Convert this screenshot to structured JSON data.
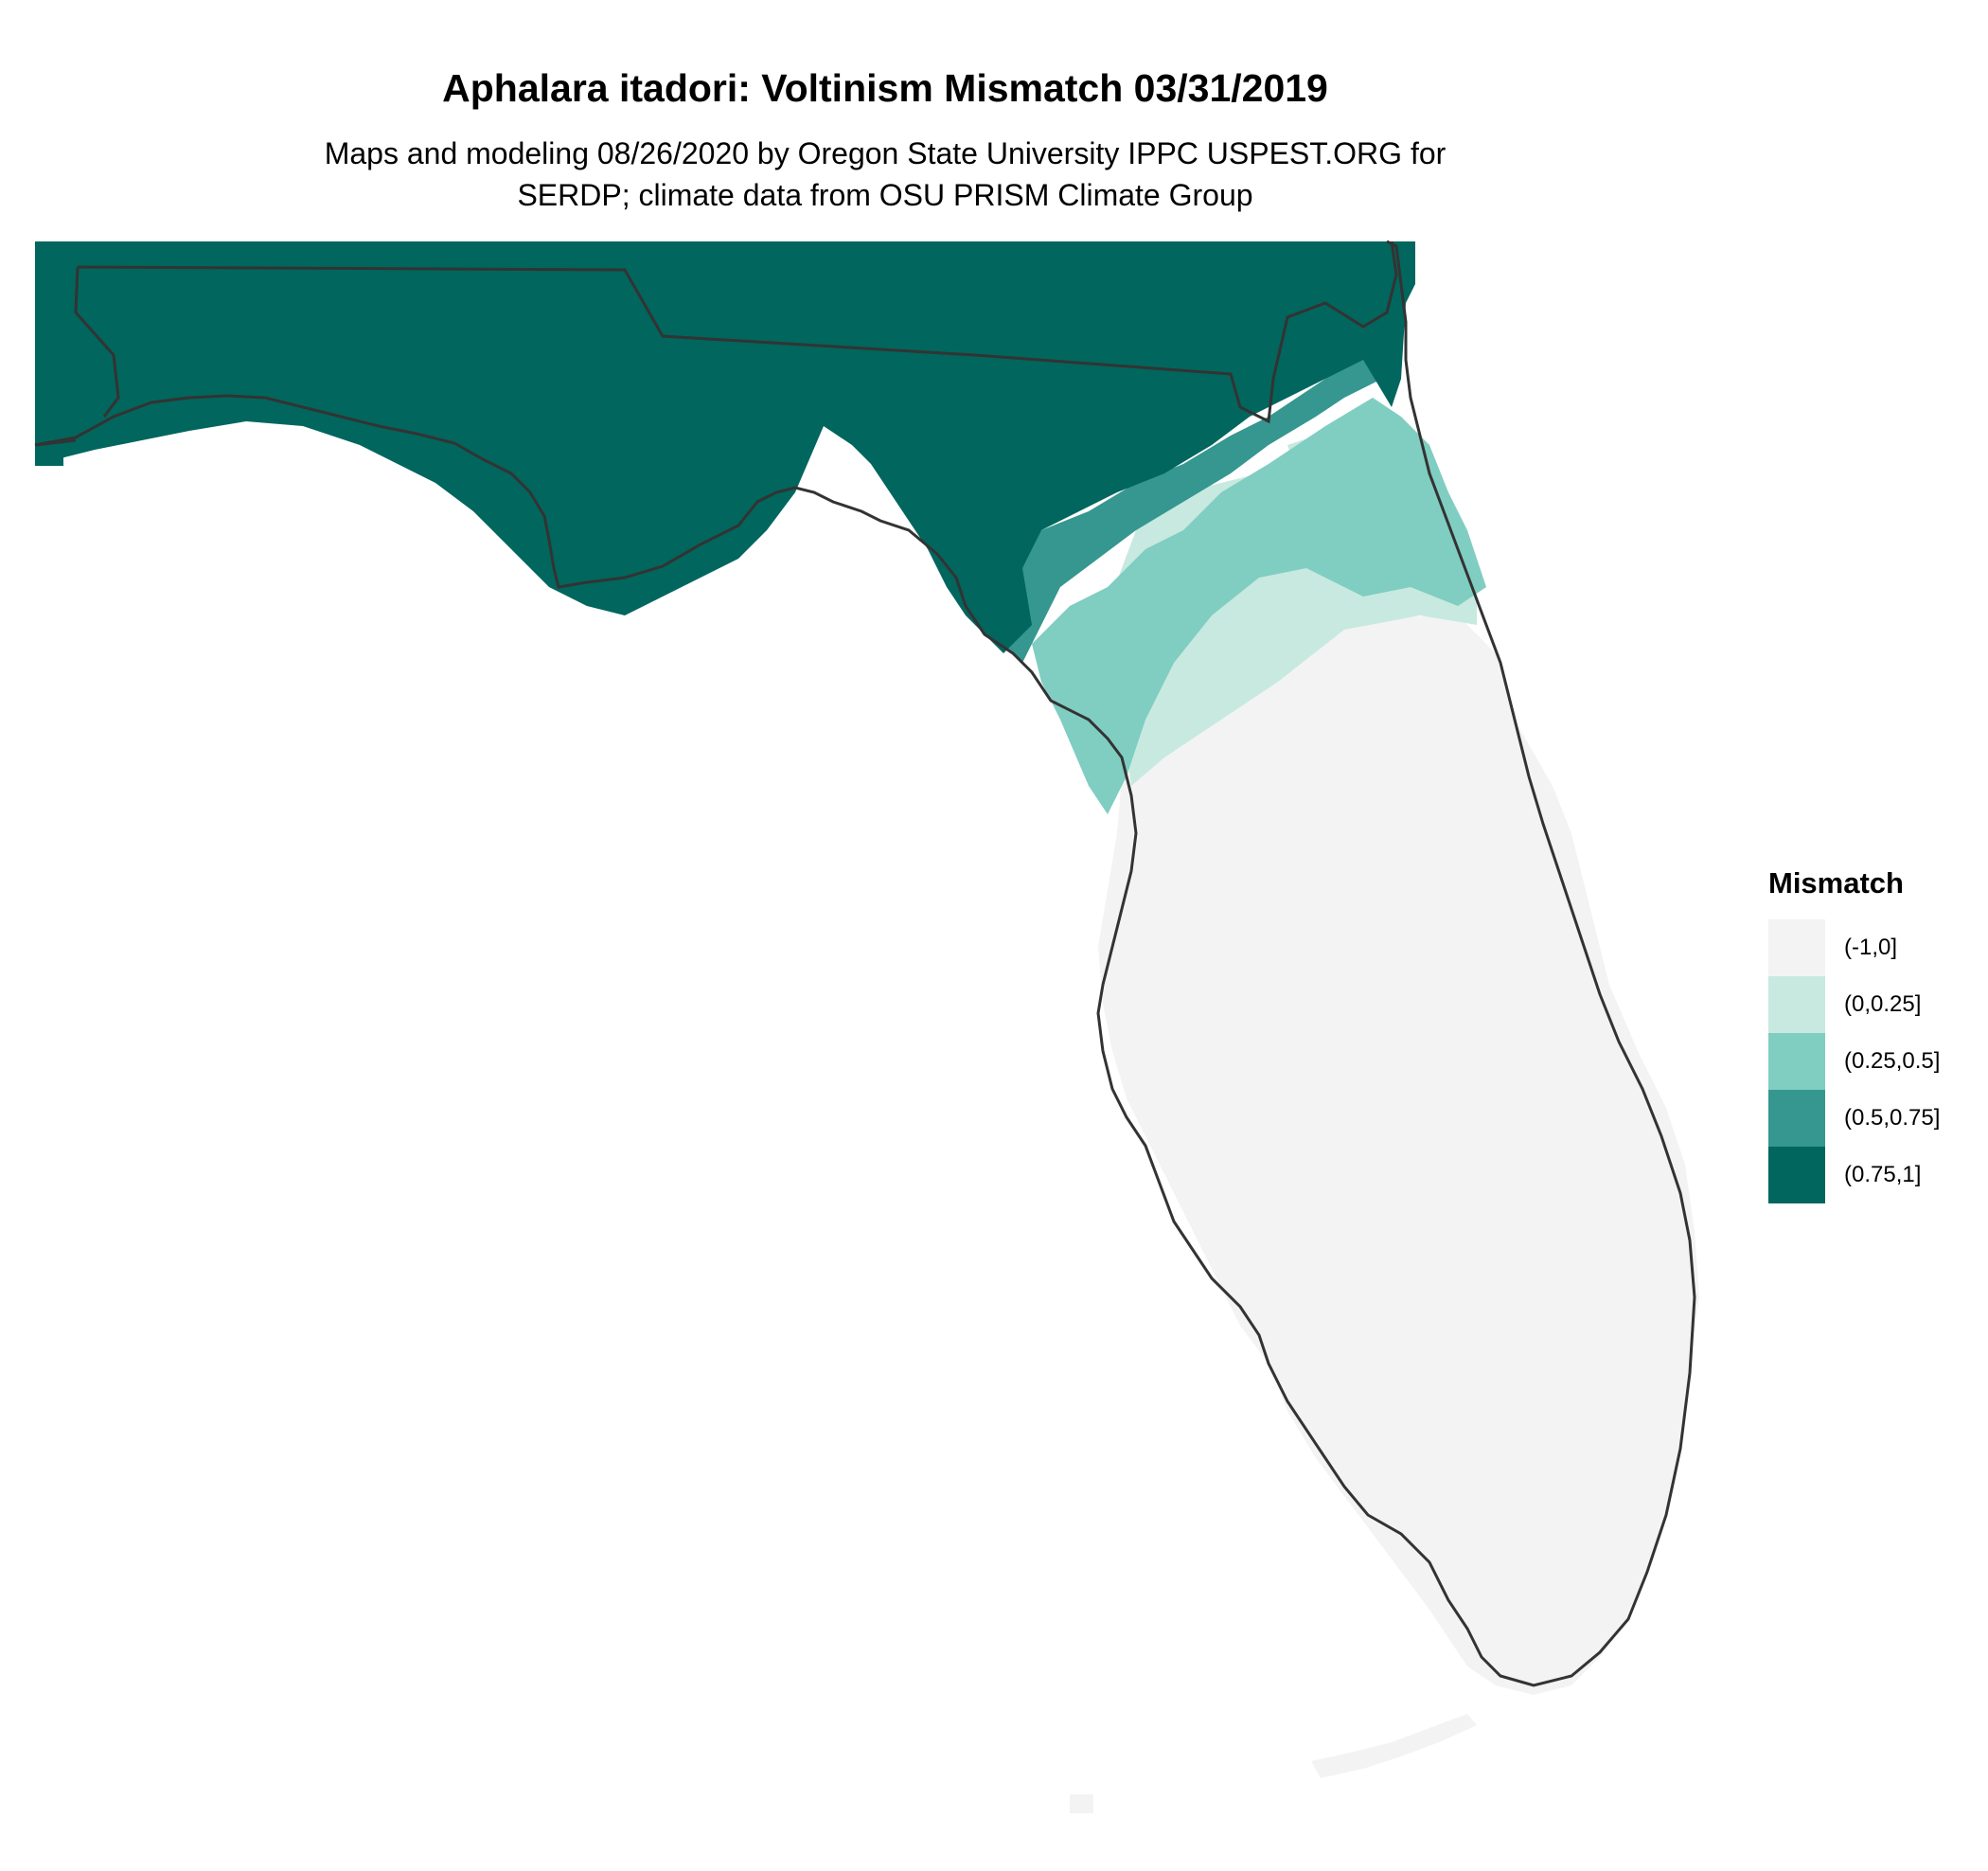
{
  "title": "Aphalara itadori: Voltinism Mismatch 03/31/2019",
  "subtitle": {
    "line1": "Maps and modeling 08/26/2020 by Oregon State University IPPC USPEST.ORG for",
    "line2": "SERDP; climate data from OSU PRISM Climate Group"
  },
  "legend": {
    "title": "Mismatch",
    "items": [
      {
        "label": "(-1,0]",
        "color": "#f3f3f3"
      },
      {
        "label": "(0,0.25]",
        "color": "#c7e9e0"
      },
      {
        "label": "(0.25,0.5]",
        "color": "#80cdc1"
      },
      {
        "label": "(0.5,0.75]",
        "color": "#35978f"
      },
      {
        "label": "(0.75,1]",
        "color": "#01665e"
      }
    ]
  },
  "map": {
    "region": "Florida",
    "outline_color": "#333333"
  }
}
